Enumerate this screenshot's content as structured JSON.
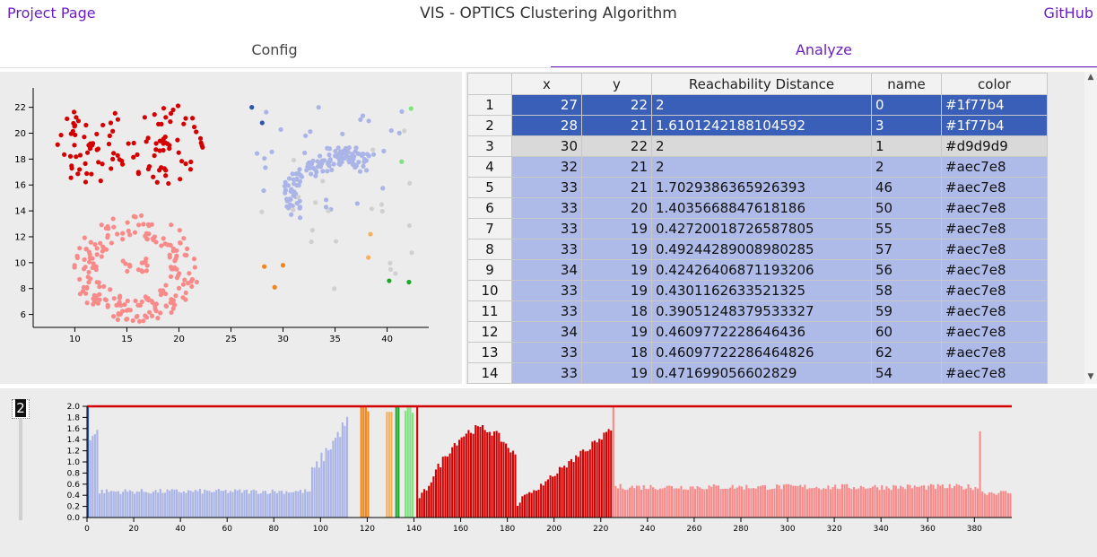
{
  "header": {
    "project_link": "Project Page",
    "title": "VIS - OPTICS Clustering Algorithm",
    "github_link": "GitHub"
  },
  "tabs": [
    {
      "label": "Config",
      "active": false
    },
    {
      "label": "Analyze",
      "active": true
    }
  ],
  "table": {
    "columns": [
      "",
      "x",
      "y",
      "Reachability Distance",
      "name",
      "color"
    ],
    "rows": [
      {
        "i": "1",
        "x": "27",
        "y": "22",
        "rd": "2",
        "name": "0",
        "color": "#1f77b4",
        "style": "sel"
      },
      {
        "i": "2",
        "x": "28",
        "y": "21",
        "rd": "1.6101242188104592",
        "name": "3",
        "color": "#1f77b4",
        "style": "sel"
      },
      {
        "i": "3",
        "x": "30",
        "y": "22",
        "rd": "2",
        "name": "1",
        "color": "#d9d9d9",
        "style": "gray"
      },
      {
        "i": "4",
        "x": "32",
        "y": "21",
        "rd": "2",
        "name": "2",
        "color": "#aec7e8",
        "style": "blue"
      },
      {
        "i": "5",
        "x": "33",
        "y": "21",
        "rd": "1.7029386365926393",
        "name": "46",
        "color": "#aec7e8",
        "style": "blue"
      },
      {
        "i": "6",
        "x": "33",
        "y": "20",
        "rd": "1.4035668847618186",
        "name": "50",
        "color": "#aec7e8",
        "style": "blue"
      },
      {
        "i": "7",
        "x": "33",
        "y": "19",
        "rd": "0.42720018726587805",
        "name": "55",
        "color": "#aec7e8",
        "style": "blue"
      },
      {
        "i": "8",
        "x": "33",
        "y": "19",
        "rd": "0.49244289008980285",
        "name": "57",
        "color": "#aec7e8",
        "style": "blue"
      },
      {
        "i": "9",
        "x": "34",
        "y": "19",
        "rd": "0.42426406871193206",
        "name": "56",
        "color": "#aec7e8",
        "style": "blue"
      },
      {
        "i": "10",
        "x": "33",
        "y": "19",
        "rd": "0.4301162633521325",
        "name": "58",
        "color": "#aec7e8",
        "style": "blue"
      },
      {
        "i": "11",
        "x": "33",
        "y": "18",
        "rd": "0.39051248379533327",
        "name": "59",
        "color": "#aec7e8",
        "style": "blue"
      },
      {
        "i": "12",
        "x": "34",
        "y": "19",
        "rd": "0.4609772228646436",
        "name": "60",
        "color": "#aec7e8",
        "style": "blue"
      },
      {
        "i": "13",
        "x": "33",
        "y": "18",
        "rd": "0.46097722286464826",
        "name": "62",
        "color": "#aec7e8",
        "style": "blue"
      },
      {
        "i": "14",
        "x": "33",
        "y": "19",
        "rd": "0.471699056602829",
        "name": "54",
        "color": "#aec7e8",
        "style": "blue"
      }
    ]
  },
  "slider": {
    "value": "2"
  },
  "chart_data": [
    {
      "type": "scatter",
      "x_ticks": [
        "10",
        "15",
        "20",
        "25",
        "30",
        "35",
        "40"
      ],
      "y_ticks": [
        "6",
        "8",
        "10",
        "12",
        "14",
        "16",
        "18",
        "20",
        "22"
      ],
      "xlim": [
        6,
        44
      ],
      "ylim": [
        5,
        23.5
      ],
      "colors": {
        "red": "#d40000",
        "pink": "#f88a8a",
        "lightblue": "#aab4e6",
        "gray": "#d0d0d0",
        "darkblue": "#2f54a8",
        "orange": "#f2861b",
        "lightorange": "#f6b15e",
        "green": "#1aaa2a",
        "lightgreen": "#7ee27e"
      }
    },
    {
      "type": "bar",
      "x_ticks": [
        "0",
        "20",
        "40",
        "60",
        "80",
        "100",
        "120",
        "140",
        "160",
        "180",
        "200",
        "220",
        "240",
        "260",
        "280",
        "300",
        "320",
        "340",
        "360",
        "380"
      ],
      "y_ticks": [
        "0.0",
        "0.2",
        "0.4",
        "0.6",
        "0.8",
        "1.0",
        "1.2",
        "1.4",
        "1.6",
        "1.8",
        "2.0"
      ],
      "xlim": [
        0,
        396
      ],
      "ylim": [
        0,
        2.0
      ],
      "threshold": 2.0,
      "threshold_color": "#d40000",
      "segments": [
        {
          "start": 0,
          "end": 1,
          "level": 2.0,
          "color": "#2f54a8",
          "pattern": "flat"
        },
        {
          "start": 1,
          "end": 5,
          "level": 1.5,
          "color": "#aab4e6",
          "pattern": "flat"
        },
        {
          "start": 5,
          "end": 96,
          "level": 0.47,
          "color": "#aab4e6",
          "pattern": "flat"
        },
        {
          "start": 96,
          "end": 112,
          "level": 1.8,
          "color": "#aab4e6",
          "pattern": "rise"
        },
        {
          "start": 112,
          "end": 117,
          "level": 0.0,
          "color": "#cccccc",
          "pattern": "flat"
        },
        {
          "start": 117,
          "end": 121,
          "level": 2.0,
          "color": "#f2861b",
          "pattern": "flat"
        },
        {
          "start": 121,
          "end": 128,
          "level": 0.0,
          "color": "#cccccc",
          "pattern": "flat"
        },
        {
          "start": 128,
          "end": 131,
          "level": 1.9,
          "color": "#f6b15e",
          "pattern": "flat"
        },
        {
          "start": 131,
          "end": 132,
          "level": 0.0,
          "color": "#cccccc",
          "pattern": "flat"
        },
        {
          "start": 132,
          "end": 134,
          "level": 2.0,
          "color": "#1aaa2a",
          "pattern": "flat"
        },
        {
          "start": 134,
          "end": 136,
          "level": 0.0,
          "color": "#cccccc",
          "pattern": "flat"
        },
        {
          "start": 136,
          "end": 140,
          "level": 2.0,
          "color": "#7ee27e",
          "pattern": "flat"
        },
        {
          "start": 140,
          "end": 141,
          "level": 0.0,
          "color": "#cccccc",
          "pattern": "flat"
        },
        {
          "start": 141,
          "end": 142,
          "level": 2.0,
          "color": "#d40000",
          "pattern": "flat"
        },
        {
          "start": 142,
          "end": 225,
          "level": 1.6,
          "color": "#d40000",
          "pattern": "wave"
        },
        {
          "start": 225,
          "end": 226,
          "level": 2.0,
          "color": "#f88a8a",
          "pattern": "flat"
        },
        {
          "start": 226,
          "end": 382,
          "level": 0.55,
          "color": "#f88a8a",
          "pattern": "flat"
        },
        {
          "start": 382,
          "end": 383,
          "level": 1.55,
          "color": "#f88a8a",
          "pattern": "flat"
        },
        {
          "start": 383,
          "end": 396,
          "level": 0.45,
          "color": "#f88a8a",
          "pattern": "flat"
        }
      ]
    }
  ]
}
